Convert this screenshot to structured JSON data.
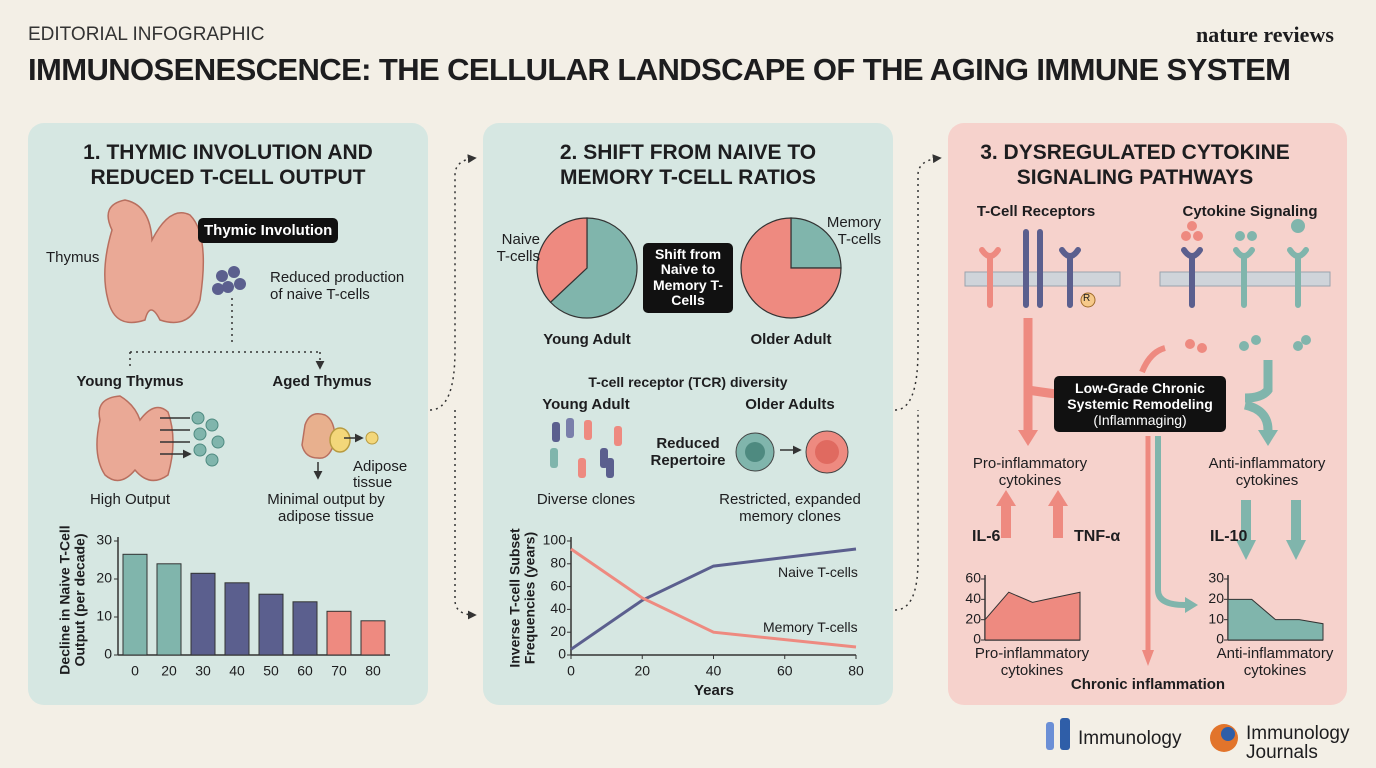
{
  "header": {
    "kicker": "EDITORIAL INFOGRAPHIC",
    "title": "IMMUNOSENESCENCE: THE CELLULAR LANDSCAPE OF THE AGING IMMUNE SYSTEM",
    "brand": "nature reviews"
  },
  "panels": [
    {
      "title": "1. THYMIC INVOLUTION AND REDUCED T-CELL OUTPUT",
      "labels": {
        "thymic_involution": "Thymic Involution",
        "thymus": "Thymus",
        "reduced_production": "Reduced production of naive T-cells",
        "young_thymus": "Young Thymus",
        "aged_thymus": "Aged Thymus",
        "high_output": "High Output",
        "adipose": "Adipose tissue",
        "minimal_output": "Minimal output by adipose tissue"
      }
    },
    {
      "title": "2. SHIFT FROM NAIVE TO MEMORY T-CELL RATIOS",
      "labels": {
        "shift": "Shift from Naive to Memory T-Cells",
        "tcr_diversity": "T-cell receptor (TCR) diversity",
        "young_adult": "Young Adult",
        "older_adults": "Older Adults",
        "reduced_repertoire": "Reduced Repertoire",
        "diverse_clones": "Diverse clones",
        "restricted_clones": "Restricted, expanded memory clones"
      }
    },
    {
      "title": "3. DYSREGULATED CYTOKINE SIGNALING PATHWAYS",
      "labels": {
        "tcr": "T-Cell Receptors",
        "cytokine_signaling": "Cytokine Signaling",
        "r": "R",
        "remodeling": "Low-Grade Chronic Systemic Remodeling",
        "inflammaging": "(Inflammaging)",
        "pro": "Pro-inflammatory cytokines",
        "anti": "Anti-inflammatory cytokines",
        "il6": "IL-6",
        "tnf": "TNF-α",
        "il10": "IL-10",
        "chronic": "Chronic inflammation"
      }
    }
  ],
  "chart_data": [
    {
      "type": "bar",
      "ylabel": "Decline in Naive T-Cell Output (per decade)",
      "categories": [
        "0",
        "20",
        "30",
        "40",
        "50",
        "60",
        "70",
        "80"
      ],
      "values": [
        26.5,
        24,
        21.5,
        19,
        16,
        14,
        11.5,
        9
      ],
      "colors": [
        "#80b5ac",
        "#80b5ac",
        "#5b5f8e",
        "#5b5f8e",
        "#5b5f8e",
        "#5b5f8e",
        "#ee8a80",
        "#ee8a80"
      ],
      "ylim": [
        0,
        30
      ],
      "yticks": [
        0,
        10,
        20,
        30
      ]
    },
    {
      "type": "pie",
      "title": "Young Adult",
      "categories": [
        "Naive T-cells",
        null
      ],
      "values": [
        37,
        63
      ],
      "colors": [
        "#ee8a80",
        "#80b5ac"
      ]
    },
    {
      "type": "pie",
      "title": "Older Adult",
      "categories": [
        null,
        "Memory T-cells"
      ],
      "values": [
        75,
        25
      ],
      "colors": [
        "#ee8a80",
        "#80b5ac"
      ]
    },
    {
      "type": "line",
      "ylabel": "Inverse T-cell Subset Frequencies (years)",
      "xlabel": "Years",
      "x": [
        0,
        20,
        40,
        80
      ],
      "series": [
        {
          "name": "Naive T-cells",
          "color": "#5b5f8e",
          "values": [
            5,
            48,
            78,
            93
          ]
        },
        {
          "name": "Memory T-cells",
          "color": "#ee8a80",
          "values": [
            93,
            50,
            20,
            7
          ]
        }
      ],
      "xlim": [
        0,
        80
      ],
      "xticks": [
        0,
        20,
        40,
        60,
        80
      ],
      "ylim": [
        0,
        100
      ],
      "yticks": [
        0,
        20,
        40,
        60,
        80,
        100
      ]
    },
    {
      "type": "area",
      "xlabel": "Pro-inflammatory cytokines",
      "values": [
        20,
        47,
        37,
        42,
        47
      ],
      "color": "#ee8a80",
      "ylim": [
        0,
        60
      ],
      "yticks": [
        0,
        20,
        40,
        60
      ]
    },
    {
      "type": "area",
      "xlabel": "Anti-inflammatory cytokines",
      "values": [
        20,
        20,
        10,
        10,
        8
      ],
      "color": "#80b5ac",
      "ylim": [
        0,
        30
      ],
      "yticks": [
        0,
        10,
        20,
        30
      ]
    }
  ],
  "footer": {
    "logos": [
      "Immunology",
      "Immunology Journals"
    ]
  }
}
